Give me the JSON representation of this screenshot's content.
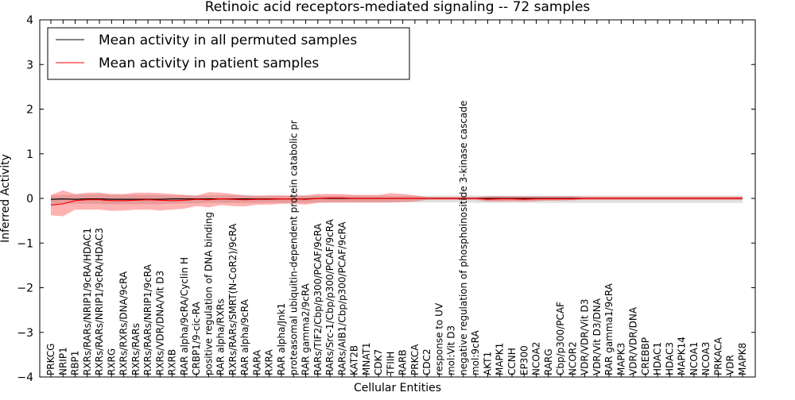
{
  "chart_data": {
    "type": "line",
    "title": "Retinoic acid receptors-mediated signaling -- 72 samples",
    "xlabel": "Cellular Entities",
    "ylabel": "Inferred Activity",
    "ylim": [
      -4,
      4
    ],
    "yticks": [
      -4,
      -3,
      -2,
      -1,
      0,
      1,
      2,
      3,
      4
    ],
    "ytick_labels": [
      "−4",
      "−3",
      "−2",
      "−1",
      "0",
      "1",
      "2",
      "3",
      "4"
    ],
    "grid": false,
    "legend_position": "top-left",
    "categories": [
      "PRKCG",
      "NRIP1",
      "RBP1",
      "RXRs/RARs/NRIP1/9cRA/HDAC1",
      "RXRs/RARs/NRIP1/9cRA/HDAC3",
      "RXRG",
      "RXRs/RXRs/DNA/9cRA",
      "RXRs/RARs",
      "RXRs/RARs/NRIP1/9cRA",
      "RXRs/VDR/DNA/Vit D3",
      "RXRB",
      "RAR alpha/9cRA/Cyclin H",
      "CRBP1/9-cic-RA",
      "positive regulation of DNA binding",
      "RAR alpha/RXRs",
      "RXRs/RARs/SMRT(N-CoR2)/9cRA",
      "RAR alpha/9cRA",
      "RARA",
      "RXRA",
      "RAR alpha/Jnk1",
      "proteasomal ubiquitin-dependent protein catabolic pr",
      "RAR gamma2/9cRA",
      "RARs/TIF2/Cbp/p300/PCAF/9cRA",
      "RARs/Src-1/Cbp/p300/PCAF/9cRA",
      "RARs/AIB1/Cbp/p300/PCAF/9cRA",
      "KAT2B",
      "MNAT1",
      "CDK7",
      "TFIIH",
      "RARB",
      "PRKCA",
      "CDC2",
      "response to UV",
      "mol:Vit D3",
      "negative regulation of phosphoinositide 3-kinase cascade",
      "mol:9cRA",
      "AKT1",
      "MAPK1",
      "CCNH",
      "EP300",
      "NCOA2",
      "RARG",
      "Cbp/p300/PCAF",
      "NCOR2",
      "VDR/VDR/Vit D3",
      "VDR/Vit D3/DNA",
      "RAR gamma1/9cRA",
      "MAPK3",
      "VDR/VDR/DNA",
      "CREBBP",
      "HDAC1",
      "HDAC3",
      "MAPK14",
      "NCOA1",
      "NCOA3",
      "PRKACA",
      "VDR",
      "MAPK8"
    ],
    "series": [
      {
        "name": "Mean activity in all permuted samples",
        "color": "#000000",
        "values": [
          -0.02,
          -0.01,
          -0.02,
          -0.01,
          -0.01,
          -0.02,
          -0.02,
          -0.02,
          -0.02,
          -0.02,
          -0.01,
          -0.01,
          -0.01,
          -0.01,
          -0.01,
          -0.01,
          -0.01,
          -0.01,
          -0.01,
          -0.01,
          -0.01,
          -0.01,
          0,
          0,
          0,
          0,
          0,
          0,
          0,
          0,
          0,
          0,
          0,
          0,
          0,
          0,
          0,
          0,
          0,
          0,
          0,
          0,
          0,
          0,
          0,
          0,
          0,
          0,
          0,
          0,
          0,
          0,
          0,
          0,
          0,
          0,
          0,
          0
        ],
        "band_lower": [
          -0.12,
          -0.11,
          -0.12,
          -0.12,
          -0.12,
          -0.13,
          -0.13,
          -0.13,
          -0.13,
          -0.13,
          -0.12,
          -0.11,
          -0.11,
          -0.1,
          -0.1,
          -0.1,
          -0.1,
          -0.1,
          -0.1,
          -0.1,
          -0.1,
          -0.1,
          -0.09,
          -0.09,
          -0.09,
          -0.09,
          -0.09,
          -0.09,
          -0.09,
          -0.09,
          -0.09,
          -0.09,
          -0.09,
          -0.09,
          -0.09,
          -0.1,
          -0.1,
          -0.1,
          -0.1,
          -0.1,
          -0.1,
          -0.1,
          -0.1,
          -0.1,
          -0.1,
          -0.1,
          -0.1,
          -0.1,
          -0.1,
          -0.1,
          -0.1,
          -0.1,
          -0.1,
          -0.1,
          -0.1,
          -0.1,
          -0.1,
          -0.1
        ],
        "band_upper": [
          0.06,
          0.08,
          0.08,
          0.09,
          0.09,
          0.08,
          0.08,
          0.08,
          0.08,
          0.08,
          0.07,
          0.07,
          0.07,
          0.07,
          0.07,
          0.07,
          0.07,
          0.06,
          0.06,
          0.06,
          0.06,
          0.06,
          0.06,
          0.06,
          0.06,
          0.06,
          0.06,
          0.06,
          0.06,
          0.06,
          0.06,
          0.06,
          0.06,
          0.06,
          0.06,
          0.06,
          0.06,
          0.06,
          0.06,
          0.06,
          0.06,
          0.06,
          0.06,
          0.06,
          0.06,
          0.06,
          0.06,
          0.06,
          0.06,
          0.06,
          0.06,
          0.06,
          0.06,
          0.06,
          0.06,
          0.06,
          0.06,
          0.06
        ]
      },
      {
        "name": "Mean activity in patient samples",
        "color": "#ff0000",
        "values": [
          -0.15,
          -0.12,
          -0.05,
          -0.03,
          -0.03,
          -0.05,
          -0.05,
          -0.04,
          -0.03,
          -0.04,
          -0.05,
          -0.04,
          -0.02,
          -0.03,
          -0.01,
          -0.02,
          -0.03,
          -0.02,
          -0.02,
          -0.01,
          -0.01,
          -0.02,
          0,
          0.01,
          0.01,
          0,
          0,
          0,
          0,
          0,
          0,
          0,
          0,
          0,
          0,
          0,
          -0.02,
          -0.01,
          -0.01,
          -0.02,
          -0.01,
          -0.01,
          -0.01,
          -0.01,
          0,
          0,
          0,
          0,
          0,
          0,
          0,
          0,
          0,
          0,
          0,
          0,
          0,
          0
        ],
        "band_lower": [
          -0.38,
          -0.4,
          -0.25,
          -0.25,
          -0.25,
          -0.28,
          -0.27,
          -0.25,
          -0.25,
          -0.27,
          -0.25,
          -0.23,
          -0.17,
          -0.2,
          -0.15,
          -0.17,
          -0.18,
          -0.14,
          -0.14,
          -0.12,
          -0.12,
          -0.14,
          -0.1,
          -0.09,
          -0.09,
          -0.09,
          -0.09,
          -0.09,
          -0.09,
          -0.08,
          -0.07,
          -0.03,
          -0.03,
          -0.03,
          -0.03,
          -0.03,
          -0.07,
          -0.07,
          -0.06,
          -0.07,
          -0.06,
          -0.05,
          -0.05,
          -0.04,
          -0.03,
          -0.03,
          -0.03,
          -0.03,
          -0.03,
          -0.03,
          -0.03,
          -0.03,
          -0.03,
          -0.03,
          -0.03,
          -0.03,
          -0.03,
          -0.03
        ],
        "band_upper": [
          0.08,
          0.18,
          0.1,
          0.13,
          0.13,
          0.1,
          0.1,
          0.13,
          0.13,
          0.12,
          0.1,
          0.08,
          0.06,
          0.14,
          0.13,
          0.1,
          0.07,
          0.06,
          0.07,
          0.07,
          0.06,
          0.07,
          0.1,
          0.1,
          0.1,
          0.08,
          0.08,
          0.08,
          0.12,
          0.1,
          0.07,
          0.03,
          0.03,
          0.03,
          0.03,
          0.03,
          0.05,
          0.05,
          0.05,
          0.05,
          0.05,
          0.05,
          0.05,
          0.05,
          0.04,
          0.04,
          0.04,
          0.04,
          0.04,
          0.04,
          0.04,
          0.04,
          0.04,
          0.04,
          0.04,
          0.04,
          0.04,
          0.04
        ]
      }
    ]
  }
}
